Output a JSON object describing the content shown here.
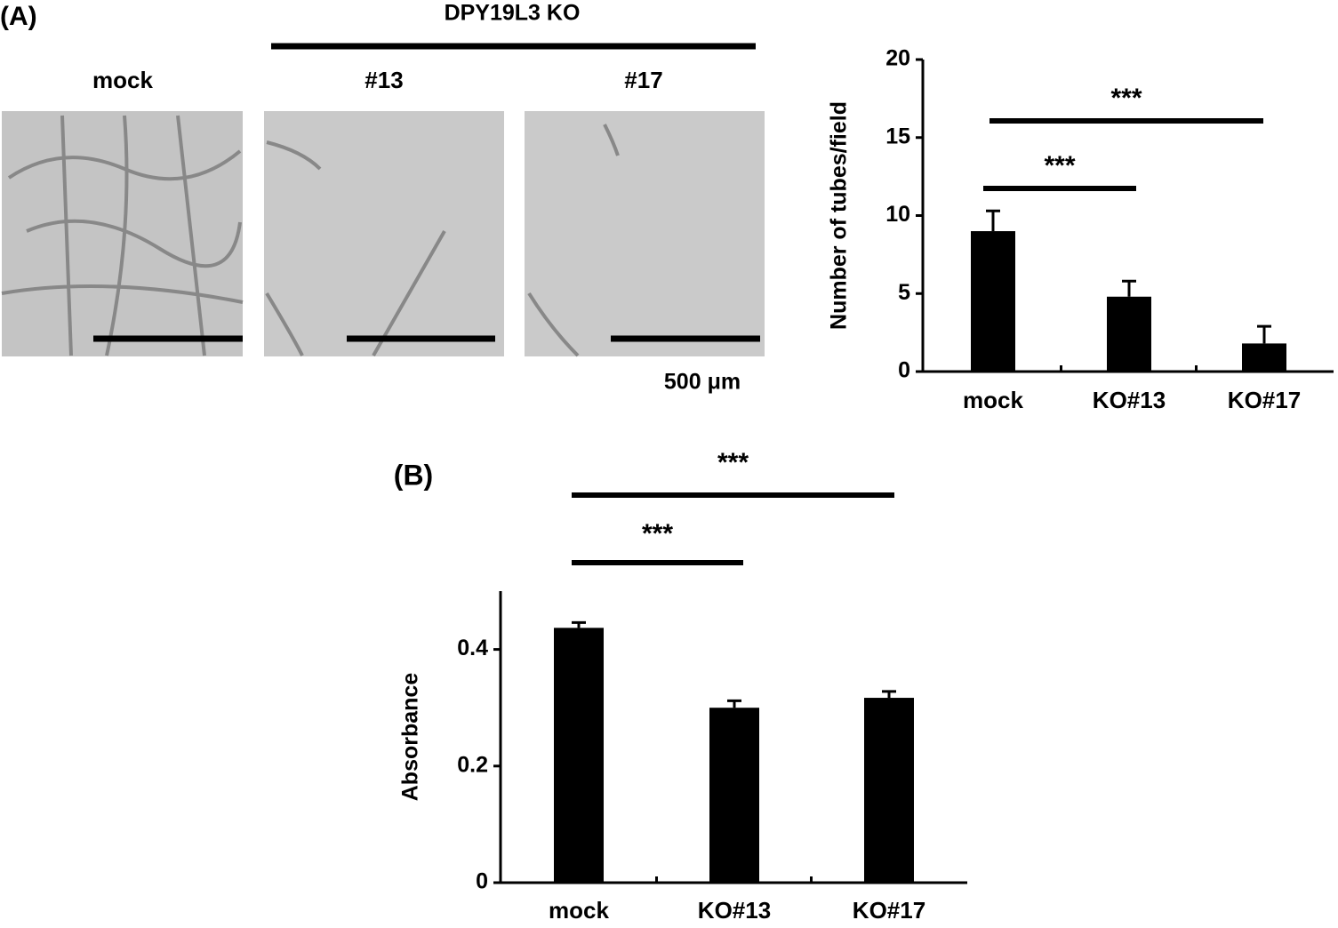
{
  "panel_a": {
    "label": "(A)",
    "group_label": "DPY19L3 KO",
    "image_labels": [
      "mock",
      "#13",
      "#17"
    ],
    "scale_bar": "500 μm"
  },
  "chart_data": [
    {
      "type": "bar",
      "ylabel": "Number of tubes/field",
      "categories": [
        "mock",
        "KO#13",
        "KO#17"
      ],
      "values": [
        9.0,
        4.8,
        1.8
      ],
      "errors": [
        1.3,
        1.0,
        1.1
      ],
      "color": "#000000",
      "ylim": [
        0,
        20
      ],
      "yticks": [
        0,
        5,
        10,
        15,
        20
      ],
      "annotations": [
        "***",
        "***"
      ]
    },
    {
      "type": "bar",
      "panel_label": "(B)",
      "ylabel": "Absorbance",
      "categories": [
        "mock",
        "KO#13",
        "KO#17"
      ],
      "values": [
        0.437,
        0.3,
        0.317
      ],
      "errors": [
        0.009,
        0.012,
        0.011
      ],
      "color": "#000000",
      "ylim": [
        0,
        0.5
      ],
      "yticks": [
        0,
        0.2,
        0.4
      ],
      "annotations": [
        "***",
        "***"
      ]
    }
  ]
}
